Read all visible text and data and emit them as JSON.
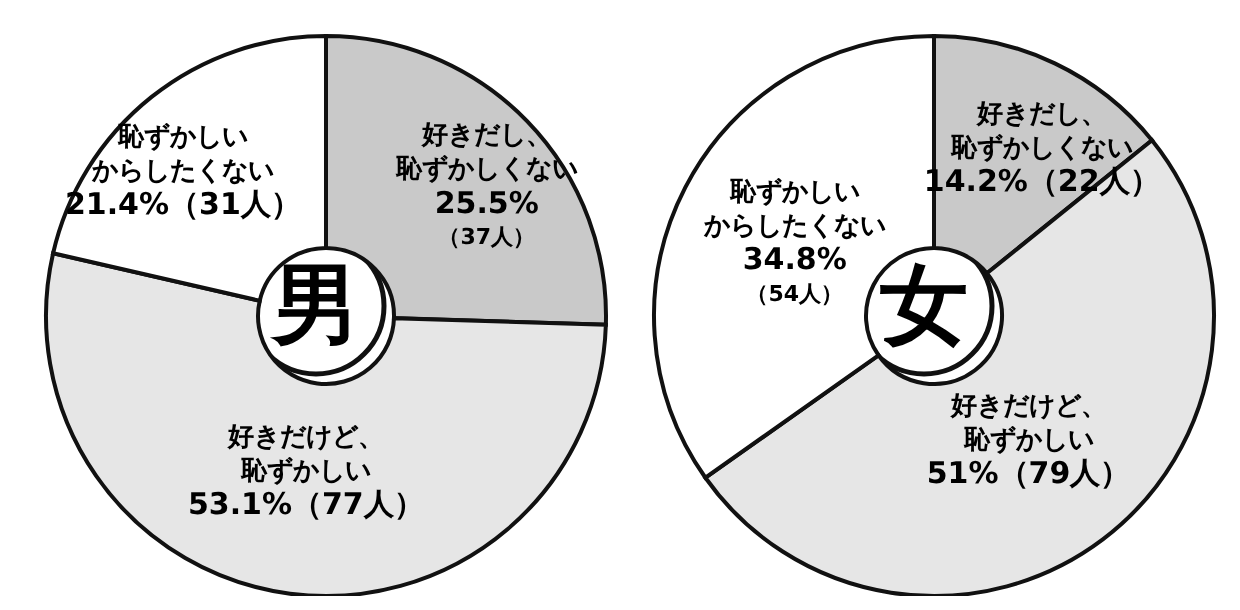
{
  "chart_data": [
    {
      "type": "donut",
      "title": "男",
      "categories": [
        "好きだし、恥ずかしくない",
        "好きだけど、恥ずかしい",
        "恥ずかしいからしたくない"
      ],
      "values": [
        25.5,
        53.1,
        21.4
      ],
      "colors": [
        "#c9c9c9",
        "#e6e6e6",
        "#ffffff"
      ],
      "value_labels": [
        "25.5%\n（37人）",
        "53.1%（77人）",
        "21.4%（31人）"
      ],
      "legend": false
    },
    {
      "type": "donut",
      "title": "女",
      "categories": [
        "好きだし、恥ずかしくない",
        "好きだけど、恥ずかしい",
        "恥ずかしいからしたくない"
      ],
      "values": [
        14.2,
        51,
        34.8
      ],
      "colors": [
        "#c9c9c9",
        "#e6e6e6",
        "#ffffff"
      ],
      "value_labels": [
        "14.2%（22人）",
        "51%（79人）",
        "34.8%\n（54人）"
      ],
      "legend": false
    }
  ]
}
